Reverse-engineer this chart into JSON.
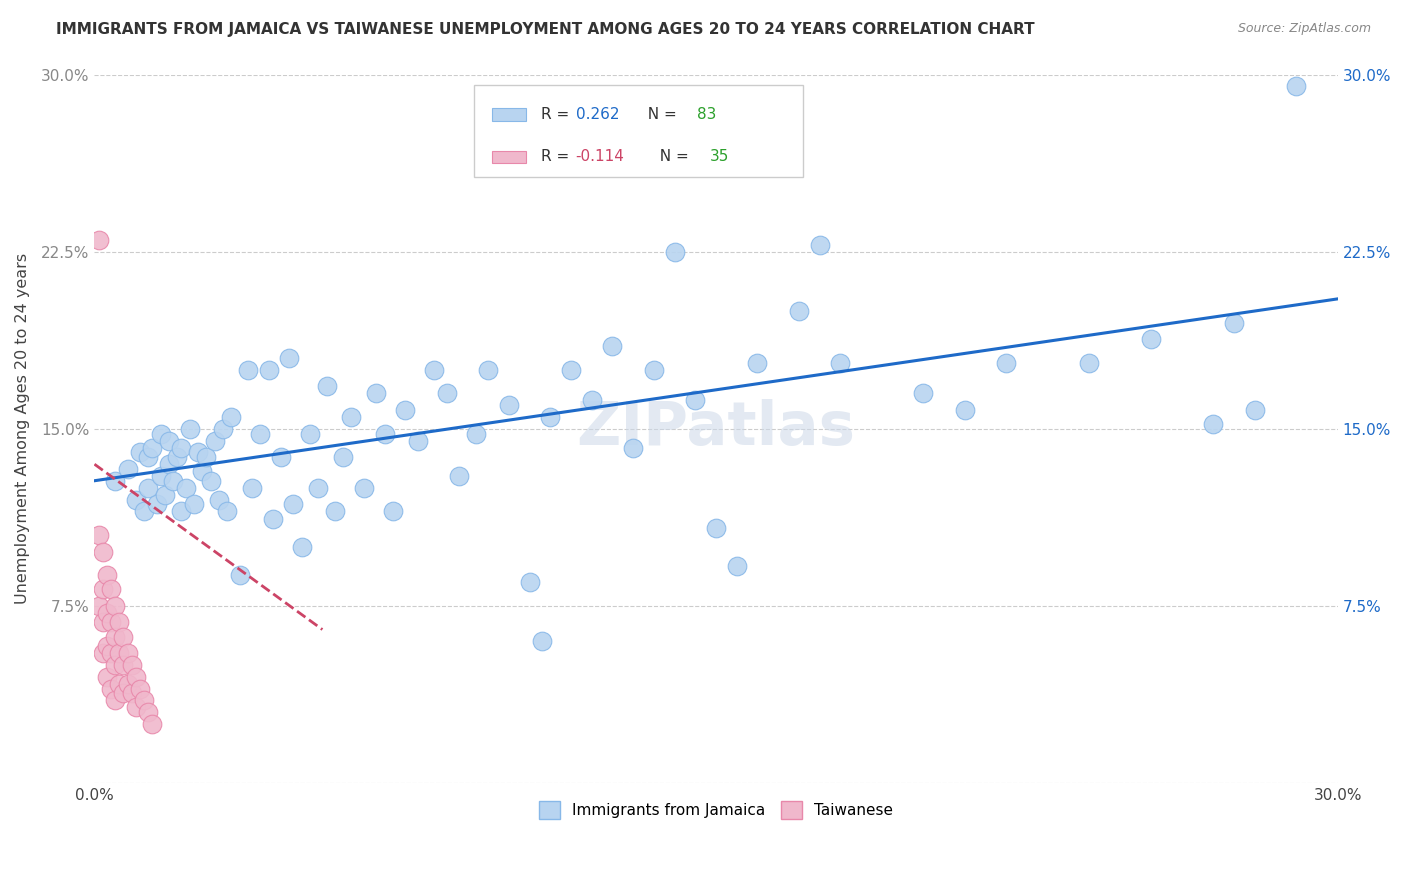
{
  "title": "IMMIGRANTS FROM JAMAICA VS TAIWANESE UNEMPLOYMENT AMONG AGES 20 TO 24 YEARS CORRELATION CHART",
  "source": "Source: ZipAtlas.com",
  "ylabel": "Unemployment Among Ages 20 to 24 years",
  "xlim": [
    0.0,
    0.3
  ],
  "ylim": [
    0.0,
    0.3
  ],
  "xticks": [
    0.0,
    0.05,
    0.1,
    0.15,
    0.2,
    0.25,
    0.3
  ],
  "yticks": [
    0.0,
    0.075,
    0.15,
    0.225,
    0.3
  ],
  "color_blue": "#b8d4f0",
  "color_pink": "#f0b8cc",
  "line_blue": "#1e6ac8",
  "line_pink": "#cc4466",
  "background": "#ffffff",
  "grid_color": "#cccccc",
  "jamaica_x": [
    0.005,
    0.008,
    0.01,
    0.011,
    0.012,
    0.013,
    0.013,
    0.014,
    0.015,
    0.016,
    0.016,
    0.017,
    0.018,
    0.018,
    0.019,
    0.02,
    0.021,
    0.021,
    0.022,
    0.023,
    0.024,
    0.025,
    0.026,
    0.027,
    0.028,
    0.029,
    0.03,
    0.031,
    0.032,
    0.033,
    0.035,
    0.037,
    0.038,
    0.04,
    0.042,
    0.043,
    0.045,
    0.047,
    0.048,
    0.05,
    0.052,
    0.054,
    0.056,
    0.058,
    0.06,
    0.062,
    0.065,
    0.068,
    0.07,
    0.072,
    0.075,
    0.078,
    0.082,
    0.085,
    0.088,
    0.092,
    0.095,
    0.1,
    0.105,
    0.108,
    0.11,
    0.115,
    0.12,
    0.125,
    0.13,
    0.135,
    0.14,
    0.145,
    0.15,
    0.155,
    0.16,
    0.17,
    0.175,
    0.18,
    0.2,
    0.21,
    0.22,
    0.24,
    0.255,
    0.27,
    0.275,
    0.28,
    0.29
  ],
  "jamaica_y": [
    0.128,
    0.133,
    0.12,
    0.14,
    0.115,
    0.138,
    0.125,
    0.142,
    0.118,
    0.13,
    0.148,
    0.122,
    0.135,
    0.145,
    0.128,
    0.138,
    0.115,
    0.142,
    0.125,
    0.15,
    0.118,
    0.14,
    0.132,
    0.138,
    0.128,
    0.145,
    0.12,
    0.15,
    0.115,
    0.155,
    0.088,
    0.175,
    0.125,
    0.148,
    0.175,
    0.112,
    0.138,
    0.18,
    0.118,
    0.1,
    0.148,
    0.125,
    0.168,
    0.115,
    0.138,
    0.155,
    0.125,
    0.165,
    0.148,
    0.115,
    0.158,
    0.145,
    0.175,
    0.165,
    0.13,
    0.148,
    0.175,
    0.16,
    0.085,
    0.06,
    0.155,
    0.175,
    0.162,
    0.185,
    0.142,
    0.175,
    0.225,
    0.162,
    0.108,
    0.092,
    0.178,
    0.2,
    0.228,
    0.178,
    0.165,
    0.158,
    0.178,
    0.178,
    0.188,
    0.152,
    0.195,
    0.158,
    0.295
  ],
  "taiwanese_x": [
    0.001,
    0.001,
    0.001,
    0.002,
    0.002,
    0.002,
    0.002,
    0.003,
    0.003,
    0.003,
    0.003,
    0.004,
    0.004,
    0.004,
    0.004,
    0.005,
    0.005,
    0.005,
    0.005,
    0.006,
    0.006,
    0.006,
    0.007,
    0.007,
    0.007,
    0.008,
    0.008,
    0.009,
    0.009,
    0.01,
    0.01,
    0.011,
    0.012,
    0.013,
    0.014
  ],
  "taiwanese_y": [
    0.23,
    0.105,
    0.075,
    0.098,
    0.082,
    0.068,
    0.055,
    0.088,
    0.072,
    0.058,
    0.045,
    0.082,
    0.068,
    0.055,
    0.04,
    0.075,
    0.062,
    0.05,
    0.035,
    0.068,
    0.055,
    0.042,
    0.062,
    0.05,
    0.038,
    0.055,
    0.042,
    0.05,
    0.038,
    0.045,
    0.032,
    0.04,
    0.035,
    0.03,
    0.025
  ],
  "jamaica_trend_x": [
    0.0,
    0.3
  ],
  "jamaica_trend_y": [
    0.128,
    0.205
  ],
  "taiwanese_trend_x": [
    0.0,
    0.055
  ],
  "taiwanese_trend_y": [
    0.135,
    0.065
  ]
}
